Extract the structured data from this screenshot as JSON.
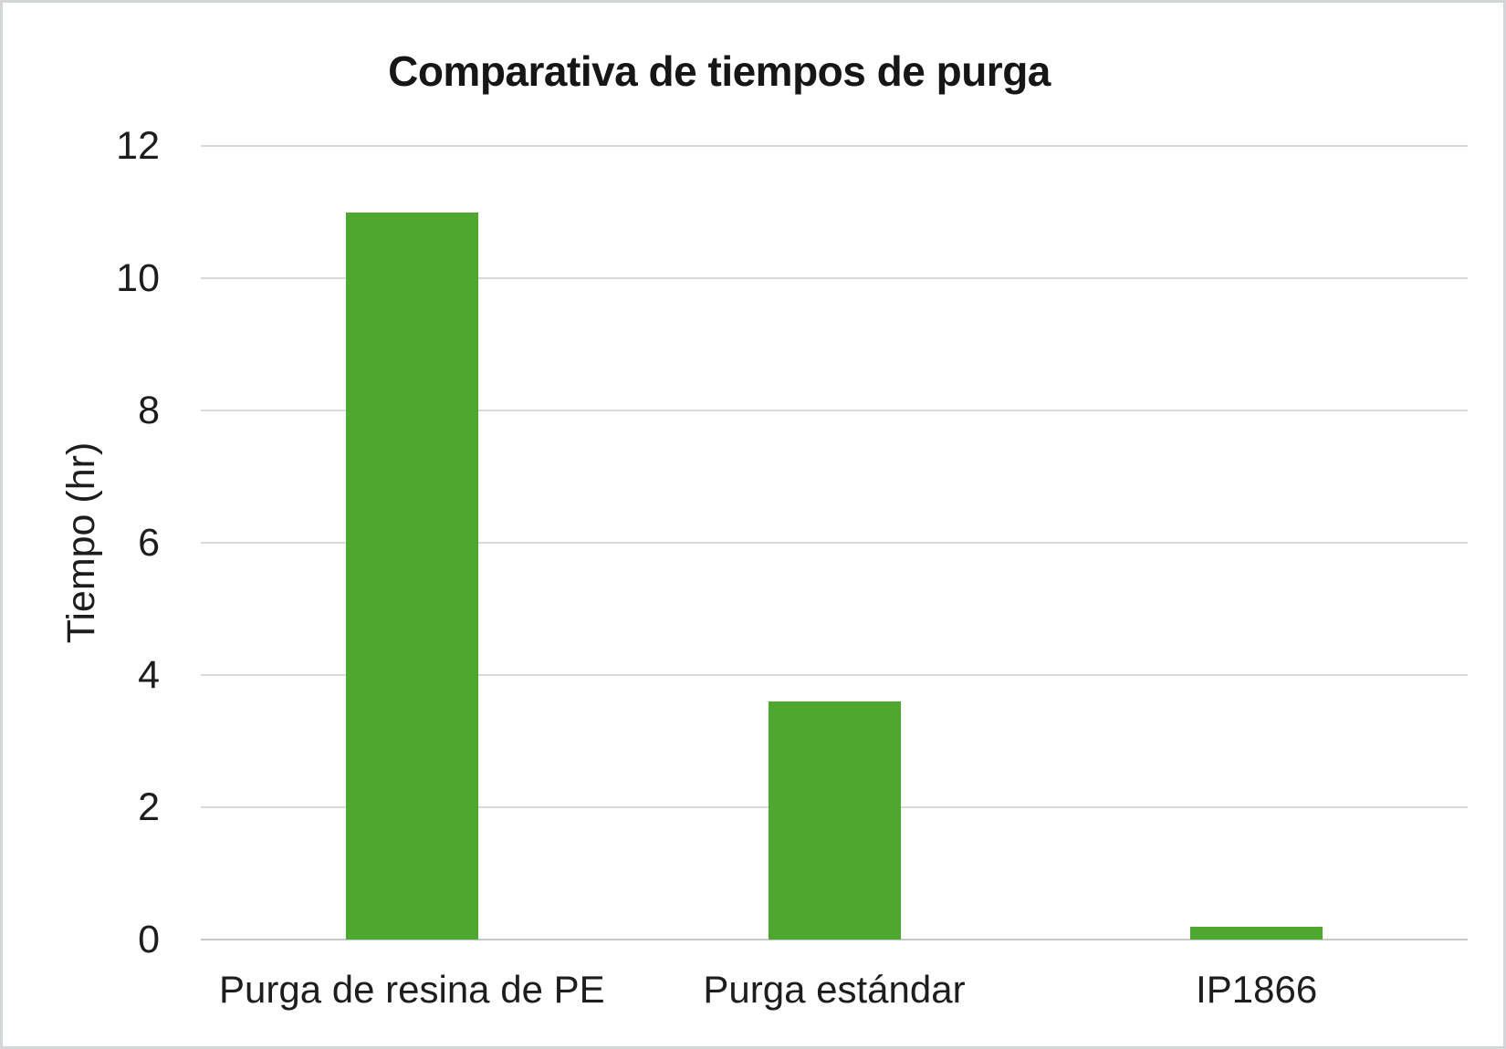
{
  "frame": {
    "border_color": "#d3d6d7",
    "background": "#ffffff"
  },
  "chart_data": {
    "type": "bar",
    "title": "Comparativa de tiempos de purga",
    "categories": [
      "Purga de resina de PE",
      "Purga estándar",
      "IP1866"
    ],
    "values": [
      11,
      3.6,
      0.2
    ],
    "xlabel": "",
    "ylabel": "Tiempo (hr)",
    "ylim": [
      0,
      12
    ],
    "yticks": [
      0,
      2,
      4,
      6,
      8,
      10,
      12
    ],
    "grid": "horizontal",
    "legend": false,
    "bar_color": "#4ea72e",
    "gridline_color": "#d9d9d9",
    "axis_line_color": "#c7cacb",
    "text_color": "#1d1d1d"
  }
}
